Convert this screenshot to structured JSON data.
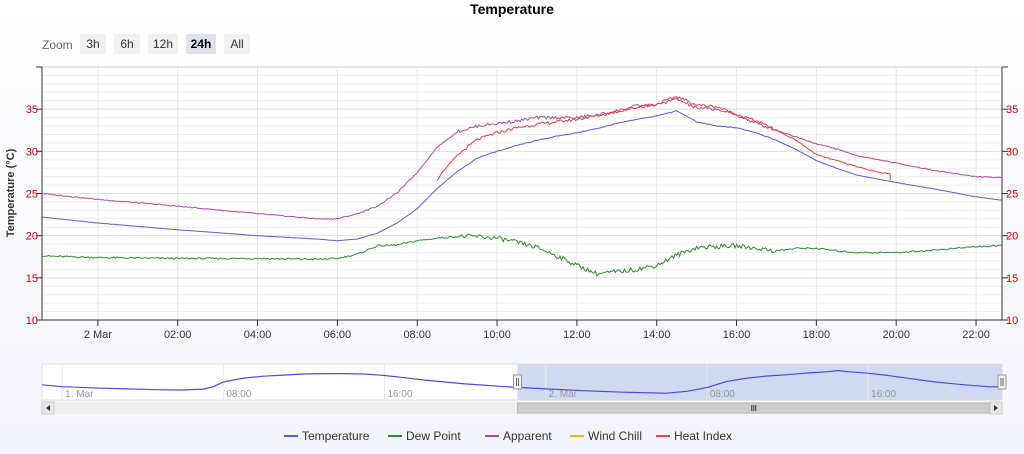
{
  "chart_data": {
    "type": "line",
    "title": "Temperature",
    "ylabel": "Temperature (°C)",
    "ylim": [
      10,
      40
    ],
    "y_ticks": [
      10,
      15,
      20,
      25,
      30,
      35
    ],
    "x_unit": "hours",
    "x_range": [
      -1.4,
      22.65
    ],
    "x_ticks": [
      {
        "x": 0,
        "label": "2 Mar"
      },
      {
        "x": 2,
        "label": "02:00"
      },
      {
        "x": 4,
        "label": "04:00"
      },
      {
        "x": 6,
        "label": "06:00"
      },
      {
        "x": 8,
        "label": "08:00"
      },
      {
        "x": 10,
        "label": "10:00"
      },
      {
        "x": 12,
        "label": "12:00"
      },
      {
        "x": 14,
        "label": "14:00"
      },
      {
        "x": 16,
        "label": "16:00"
      },
      {
        "x": 18,
        "label": "18:00"
      },
      {
        "x": 20,
        "label": "20:00"
      },
      {
        "x": 22,
        "label": "22:00"
      }
    ],
    "grid": true,
    "legend_position": "bottom-center",
    "series": [
      {
        "name": "Temperature",
        "color": "#5a5ad6",
        "x": [
          -1.4,
          0,
          2,
          4,
          5.5,
          6,
          6.5,
          7,
          7.5,
          8,
          8.5,
          9,
          9.5,
          10,
          10.5,
          11,
          11.5,
          12,
          12.5,
          13,
          13.5,
          14,
          14.5,
          15,
          15.5,
          16,
          16.5,
          17,
          17.5,
          18,
          18.5,
          19,
          20,
          21,
          22,
          22.65
        ],
        "y": [
          22.2,
          21.5,
          20.7,
          20.0,
          19.6,
          19.4,
          19.6,
          20.3,
          21.5,
          23.2,
          25.6,
          27.6,
          29.2,
          30.0,
          30.7,
          31.3,
          31.8,
          32.2,
          32.7,
          33.3,
          33.8,
          34.2,
          34.8,
          33.5,
          33.0,
          32.8,
          32.2,
          31.3,
          30.2,
          28.9,
          28.0,
          27.2,
          26.3,
          25.5,
          24.6,
          24.2
        ]
      },
      {
        "name": "Dew Point",
        "color": "#2e8b2e",
        "x": [
          -1.4,
          0,
          2,
          4,
          5.5,
          6,
          6.5,
          7,
          7.5,
          8,
          8.5,
          9,
          9.5,
          10,
          10.5,
          11,
          11.5,
          12,
          12.5,
          13,
          13.5,
          14,
          14.5,
          15,
          15.5,
          16,
          16.5,
          17,
          17.5,
          18,
          18.5,
          19,
          20,
          21,
          22,
          22.65
        ],
        "y": [
          17.6,
          17.4,
          17.3,
          17.3,
          17.2,
          17.3,
          17.8,
          18.8,
          18.9,
          19.4,
          19.7,
          19.9,
          19.9,
          19.7,
          19.2,
          18.6,
          17.6,
          16.5,
          15.5,
          15.7,
          16.0,
          16.5,
          17.7,
          18.6,
          18.7,
          18.8,
          18.5,
          18.2,
          18.5,
          18.5,
          18.2,
          18.0,
          18.0,
          18.3,
          18.7,
          18.8
        ]
      },
      {
        "name": "Apparent",
        "color": "#a64ca6",
        "x": [
          -1.4,
          0,
          2,
          4,
          5.5,
          6,
          6.5,
          7,
          7.5,
          8,
          8.5,
          9,
          9.5,
          10,
          10.5,
          11,
          11.5,
          12,
          12.5,
          13,
          13.5,
          14,
          14.5,
          15,
          15.5,
          16,
          16.5,
          17,
          17.5,
          18,
          18.5,
          19,
          20,
          21,
          22,
          22.65
        ],
        "y": [
          25.0,
          24.3,
          23.5,
          22.6,
          22.0,
          22.0,
          22.6,
          23.5,
          25.1,
          27.5,
          30.5,
          32.3,
          33.0,
          33.3,
          33.6,
          34.0,
          34.0,
          34.0,
          34.3,
          34.8,
          35.4,
          35.5,
          36.2,
          35.1,
          35.0,
          34.3,
          33.3,
          32.5,
          31.7,
          30.9,
          30.3,
          29.5,
          28.6,
          27.7,
          27.0,
          26.9
        ]
      },
      {
        "name": "Wind Chill",
        "color": "#f0b030",
        "x": [],
        "y": []
      },
      {
        "name": "Heat Index",
        "color": "#e84040",
        "x": [
          8.5,
          8.6,
          9,
          9.5,
          10,
          10.5,
          11,
          11.5,
          12,
          12.5,
          13,
          13.5,
          14,
          14.5,
          15,
          15.5,
          16,
          16.5,
          17,
          17.5,
          18,
          18.5,
          19,
          19.5,
          19.85,
          19.85
        ],
        "y": [
          26.5,
          27.4,
          29.5,
          31.4,
          32.2,
          32.8,
          33.2,
          33.5,
          33.8,
          34.2,
          34.7,
          35.2,
          35.6,
          36.5,
          35.5,
          35.3,
          34.4,
          33.6,
          32.5,
          31.3,
          29.6,
          28.9,
          28.2,
          27.6,
          27.3,
          26.6
        ]
      }
    ],
    "navigator": {
      "x_ticks": [
        {
          "x": -24,
          "label": "1. Mar"
        },
        {
          "x": -16,
          "label": "08:00"
        },
        {
          "x": -8,
          "label": "16:00"
        },
        {
          "x": 0,
          "label": "2. Mar"
        },
        {
          "x": 8,
          "label": "08:00"
        },
        {
          "x": 16,
          "label": "16:00"
        }
      ],
      "x_range": [
        -25,
        22.65
      ],
      "series": {
        "name": "Temperature",
        "x": [
          -25,
          -24,
          -22,
          -20,
          -19,
          -18,
          -17,
          -16.5,
          -16,
          -15,
          -14,
          -13,
          -12,
          -11,
          -10,
          -9,
          -8,
          -7,
          -6,
          -5,
          -4,
          -2,
          0,
          2,
          4,
          6,
          7,
          8,
          9,
          10,
          11,
          12,
          13,
          14,
          14.5,
          15,
          16,
          17,
          18,
          19,
          20,
          21,
          22,
          22.65
        ],
        "y": [
          26.0,
          25.0,
          24.2,
          23.6,
          23.3,
          23.2,
          23.7,
          25.0,
          27.5,
          29.6,
          30.6,
          31.2,
          31.8,
          32.0,
          32.0,
          31.8,
          31.0,
          29.8,
          28.5,
          27.5,
          26.5,
          25.0,
          23.8,
          22.8,
          22.0,
          21.5,
          22.5,
          24.5,
          27.8,
          29.6,
          30.7,
          31.4,
          32.3,
          33.0,
          33.6,
          33.0,
          32.2,
          31.0,
          29.5,
          28.0,
          26.8,
          25.8,
          25.0,
          24.8
        ]
      },
      "selected_range": [
        -1.4,
        22.65
      ]
    },
    "zoom": {
      "label": "Zoom",
      "buttons": [
        "3h",
        "6h",
        "12h",
        "24h",
        "All"
      ],
      "active": "24h"
    }
  }
}
